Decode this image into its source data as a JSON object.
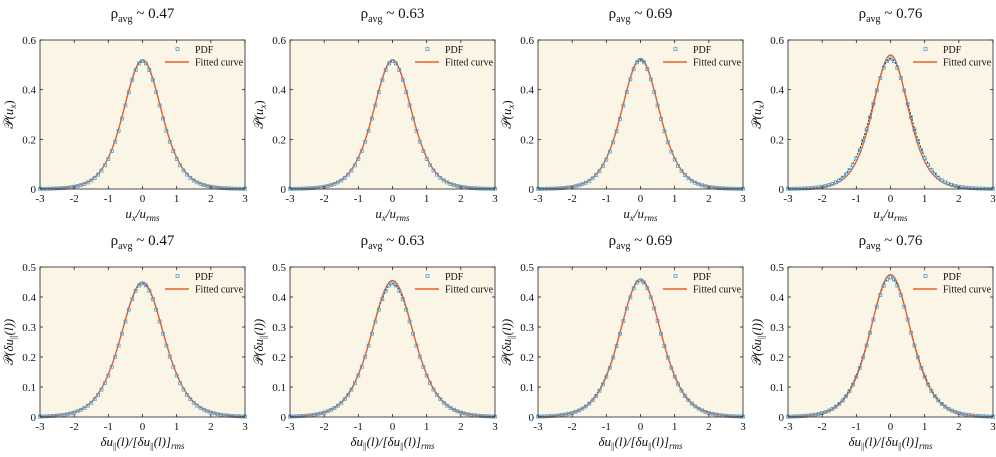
{
  "figure": {
    "layout": "2x4 grid of PDF panels"
  },
  "colors": {
    "plot_background": "#fbf5e6",
    "pdf_markers": "#4ba3d8",
    "fitted_curve": "#e8602c",
    "dashed_curve": "#1a1a1a",
    "axes": "#222222"
  },
  "chart_data": [
    {
      "type": "line",
      "row": 0,
      "col": 0,
      "title": {
        "prefix": "ρ",
        "subscript": "avg",
        "suffix": " ~ 0.47"
      },
      "xlabel": "u_x/u_rms",
      "ylabel": "P(u_x)",
      "xlim": [
        -3,
        3
      ],
      "ylim": [
        0,
        0.6
      ],
      "xticks": [
        "-3",
        "-2",
        "-1",
        "0",
        "1",
        "2",
        "3"
      ],
      "yticks": [
        "0",
        "0.2",
        "0.4",
        "0.6"
      ],
      "legend": [
        "PDF",
        "Fitted curve"
      ],
      "legend_position": "top-right",
      "peak": 0.52,
      "fit_width": 0.75,
      "pdf_width": 0.74,
      "pdf_peak": 0.515
    },
    {
      "type": "line",
      "row": 0,
      "col": 1,
      "title": {
        "prefix": "ρ",
        "subscript": "avg",
        "suffix": " ~ 0.63"
      },
      "xlabel": "u_x/u_rms",
      "ylabel": "P(u_x)",
      "xlim": [
        -3,
        3
      ],
      "ylim": [
        0,
        0.6
      ],
      "xticks": [
        "-3",
        "-2",
        "-1",
        "0",
        "1",
        "2",
        "3"
      ],
      "yticks": [
        "0",
        "0.2",
        "0.4",
        "0.6"
      ],
      "legend": [
        "PDF",
        "Fitted curve"
      ],
      "legend_position": "top-right",
      "peak": 0.52,
      "fit_width": 0.75,
      "pdf_width": 0.74,
      "pdf_peak": 0.515
    },
    {
      "type": "line",
      "row": 0,
      "col": 2,
      "title": {
        "prefix": "ρ",
        "subscript": "avg",
        "suffix": " ~ 0.69"
      },
      "xlabel": "u_x/u_rms",
      "ylabel": "P(u_x)",
      "xlim": [
        -3,
        3
      ],
      "ylim": [
        0,
        0.6
      ],
      "xticks": [
        "-3",
        "-2",
        "-1",
        "0",
        "1",
        "2",
        "3"
      ],
      "yticks": [
        "0",
        "0.2",
        "0.4",
        "0.6"
      ],
      "legend": [
        "PDF",
        "Fitted curve"
      ],
      "legend_position": "top-right",
      "peak": 0.525,
      "fit_width": 0.74,
      "pdf_width": 0.73,
      "pdf_peak": 0.52
    },
    {
      "type": "line",
      "row": 0,
      "col": 3,
      "title": {
        "prefix": "ρ",
        "subscript": "avg",
        "suffix": " ~ 0.76"
      },
      "xlabel": "u_x/u_rms",
      "ylabel": "P(u_x)",
      "xlim": [
        -3,
        3
      ],
      "ylim": [
        0,
        0.6
      ],
      "xticks": [
        "-3",
        "-2",
        "-1",
        "0",
        "1",
        "2",
        "3"
      ],
      "yticks": [
        "0",
        "0.2",
        "0.4",
        "0.6"
      ],
      "legend": [
        "PDF",
        "Fitted curve"
      ],
      "legend_position": "top-right",
      "peak": 0.54,
      "fit_width": 0.7,
      "pdf_width": 0.74,
      "pdf_peak": 0.525
    },
    {
      "type": "line",
      "row": 1,
      "col": 0,
      "title": {
        "prefix": "ρ",
        "subscript": "avg",
        "suffix": " ~ 0.47"
      },
      "xlabel": "δu_||(l)/[δu_||(l)]_rms",
      "ylabel": "P(δu_||(l))",
      "xlim": [
        -3,
        3
      ],
      "ylim": [
        0,
        0.5
      ],
      "xticks": [
        "-3",
        "-2",
        "-1",
        "0",
        "1",
        "2",
        "3"
      ],
      "yticks": [
        "0",
        "0.1",
        "0.2",
        "0.3",
        "0.4",
        "0.5"
      ],
      "legend": [
        "PDF",
        "Fitted curve"
      ],
      "legend_position": "top-right",
      "peak": 0.45,
      "fit_width": 0.85,
      "pdf_width": 0.84,
      "pdf_peak": 0.445
    },
    {
      "type": "line",
      "row": 1,
      "col": 1,
      "title": {
        "prefix": "ρ",
        "subscript": "avg",
        "suffix": " ~ 0.63"
      },
      "xlabel": "δu_||(l)/[δu_||(l)]_rms",
      "ylabel": "P(δu_||(l))",
      "xlim": [
        -3,
        3
      ],
      "ylim": [
        0,
        0.5
      ],
      "xticks": [
        "-3",
        "-2",
        "-1",
        "0",
        "1",
        "2",
        "3"
      ],
      "yticks": [
        "0",
        "0.1",
        "0.2",
        "0.3",
        "0.4",
        "0.5"
      ],
      "legend": [
        "PDF",
        "Fitted curve"
      ],
      "legend_position": "top-right",
      "peak": 0.455,
      "fit_width": 0.84,
      "pdf_width": 0.84,
      "pdf_peak": 0.445
    },
    {
      "type": "line",
      "row": 1,
      "col": 2,
      "title": {
        "prefix": "ρ",
        "subscript": "avg",
        "suffix": " ~ 0.69"
      },
      "xlabel": "δu_||(l)/[δu_||(l)]_rms",
      "ylabel": "P(δu_||(l))",
      "xlim": [
        -3,
        3
      ],
      "ylim": [
        0,
        0.5
      ],
      "xticks": [
        "-3",
        "-2",
        "-1",
        "0",
        "1",
        "2",
        "3"
      ],
      "yticks": [
        "0",
        "0.1",
        "0.2",
        "0.3",
        "0.4",
        "0.5"
      ],
      "legend": [
        "PDF",
        "Fitted curve"
      ],
      "legend_position": "top-right",
      "peak": 0.46,
      "fit_width": 0.82,
      "pdf_width": 0.82,
      "pdf_peak": 0.455
    },
    {
      "type": "line",
      "row": 1,
      "col": 3,
      "title": {
        "prefix": "ρ",
        "subscript": "avg",
        "suffix": " ~ 0.76"
      },
      "xlabel": "δu_||(l)/[δu_||(l)]_rms",
      "ylabel": "P(δu_||(l))",
      "xlim": [
        -3,
        3
      ],
      "ylim": [
        0,
        0.5
      ],
      "xticks": [
        "-3",
        "-2",
        "-1",
        "0",
        "1",
        "2",
        "3"
      ],
      "yticks": [
        "0",
        "0.1",
        "0.2",
        "0.3",
        "0.4",
        "0.5"
      ],
      "legend": [
        "PDF",
        "Fitted curve"
      ],
      "legend_position": "top-right",
      "peak": 0.475,
      "fit_width": 0.8,
      "pdf_width": 0.81,
      "pdf_peak": 0.465
    }
  ]
}
